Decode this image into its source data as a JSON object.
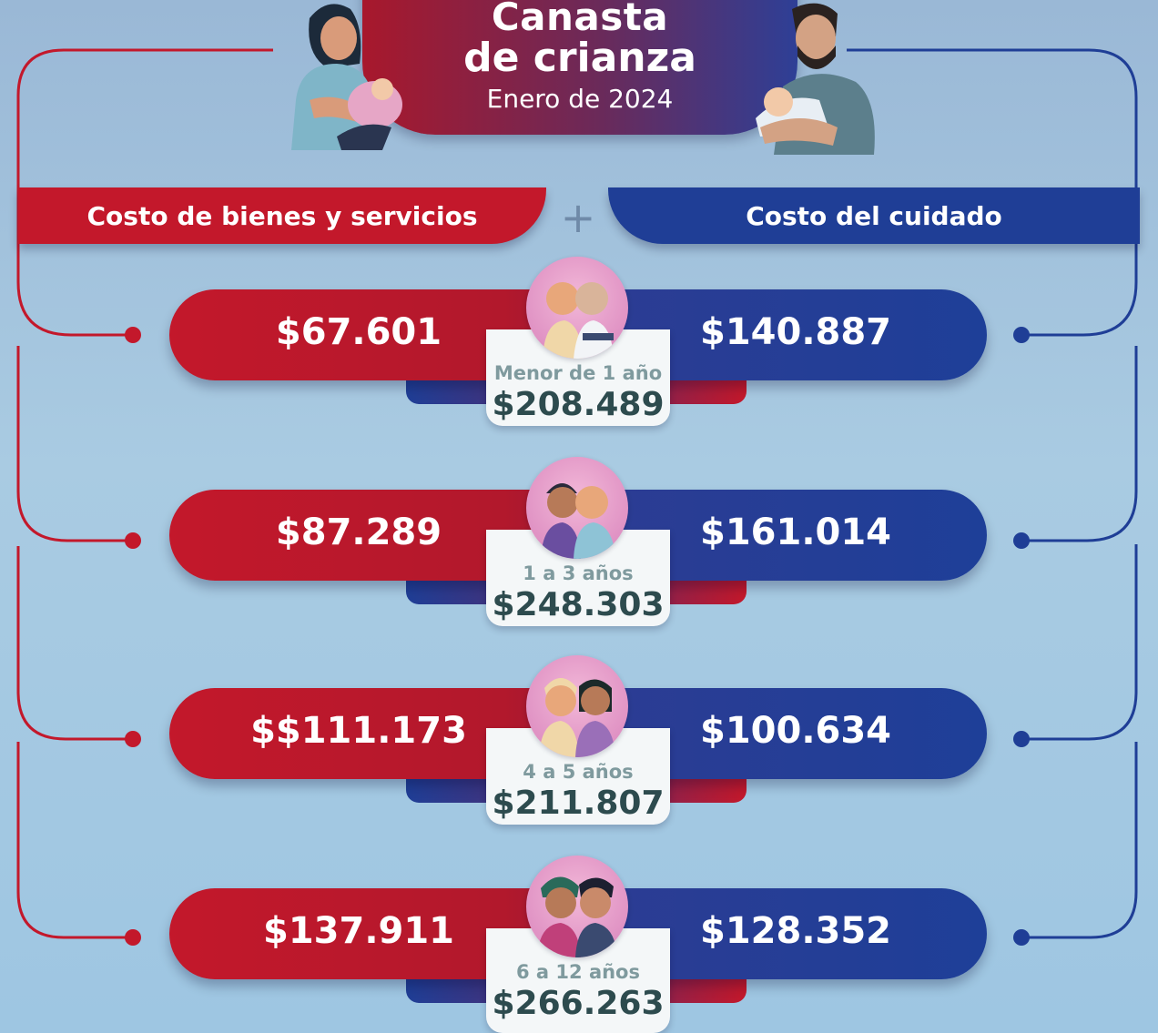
{
  "header": {
    "title_line1": "Canasta",
    "title_line2": "de crianza",
    "date": "Enero de 2024"
  },
  "columns": {
    "left": "Costo de bienes y servicios",
    "plus": "+",
    "right": "Costo del cuidado"
  },
  "rows": [
    {
      "goods": "$67.601",
      "care": "$140.887",
      "age": "Menor de 1 año",
      "total": "$208.489"
    },
    {
      "goods": "$87.289",
      "care": "$161.014",
      "age": "1 a 3 años",
      "total": "$248.303"
    },
    {
      "goods": "$$111.173",
      "care": "$100.634",
      "age": "4 a 5 años",
      "total": "$211.807"
    },
    {
      "goods": "$137.911",
      "care": "$128.352",
      "age": "6 a 12 años",
      "total": "$266.263"
    }
  ],
  "colors": {
    "red": "#c3182b",
    "blue": "#1f3e96",
    "background": "#a9cbe2",
    "card": "#f4f7f8",
    "total_text": "#2d4b4e",
    "age_text": "#7f9a9e"
  },
  "icons": [
    "mother-feeding-baby-illustration",
    "father-holding-baby-illustration",
    "infant-children-avatar",
    "toddler-children-avatar",
    "preschool-children-avatar",
    "school-children-avatar"
  ]
}
